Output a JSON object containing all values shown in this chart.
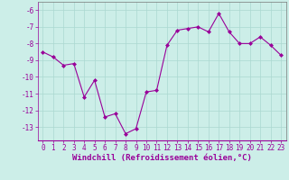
{
  "x": [
    0,
    1,
    2,
    3,
    4,
    5,
    6,
    7,
    8,
    9,
    10,
    11,
    12,
    13,
    14,
    15,
    16,
    17,
    18,
    19,
    20,
    21,
    22,
    23
  ],
  "y": [
    -8.5,
    -8.8,
    -9.3,
    -9.2,
    -11.2,
    -10.2,
    -12.4,
    -12.2,
    -13.4,
    -13.1,
    -10.9,
    -10.8,
    -8.1,
    -7.2,
    -7.1,
    -7.0,
    -7.3,
    -6.2,
    -7.3,
    -8.0,
    -8.0,
    -7.6,
    -8.1,
    -8.7
  ],
  "line_color": "#990099",
  "marker": "D",
  "marker_size": 2,
  "bg_color": "#cceee8",
  "grid_color": "#aad8d0",
  "xlabel": "Windchill (Refroidissement éolien,°C)",
  "ylim": [
    -13.8,
    -5.5
  ],
  "xlim": [
    -0.5,
    23.5
  ],
  "yticks": [
    -13,
    -12,
    -11,
    -10,
    -9,
    -8,
    -7,
    -6
  ],
  "xticks": [
    0,
    1,
    2,
    3,
    4,
    5,
    6,
    7,
    8,
    9,
    10,
    11,
    12,
    13,
    14,
    15,
    16,
    17,
    18,
    19,
    20,
    21,
    22,
    23
  ],
  "tick_color": "#990099",
  "label_color": "#990099",
  "tick_fontsize": 5.5,
  "xlabel_fontsize": 6.5,
  "spine_color": "#777777"
}
